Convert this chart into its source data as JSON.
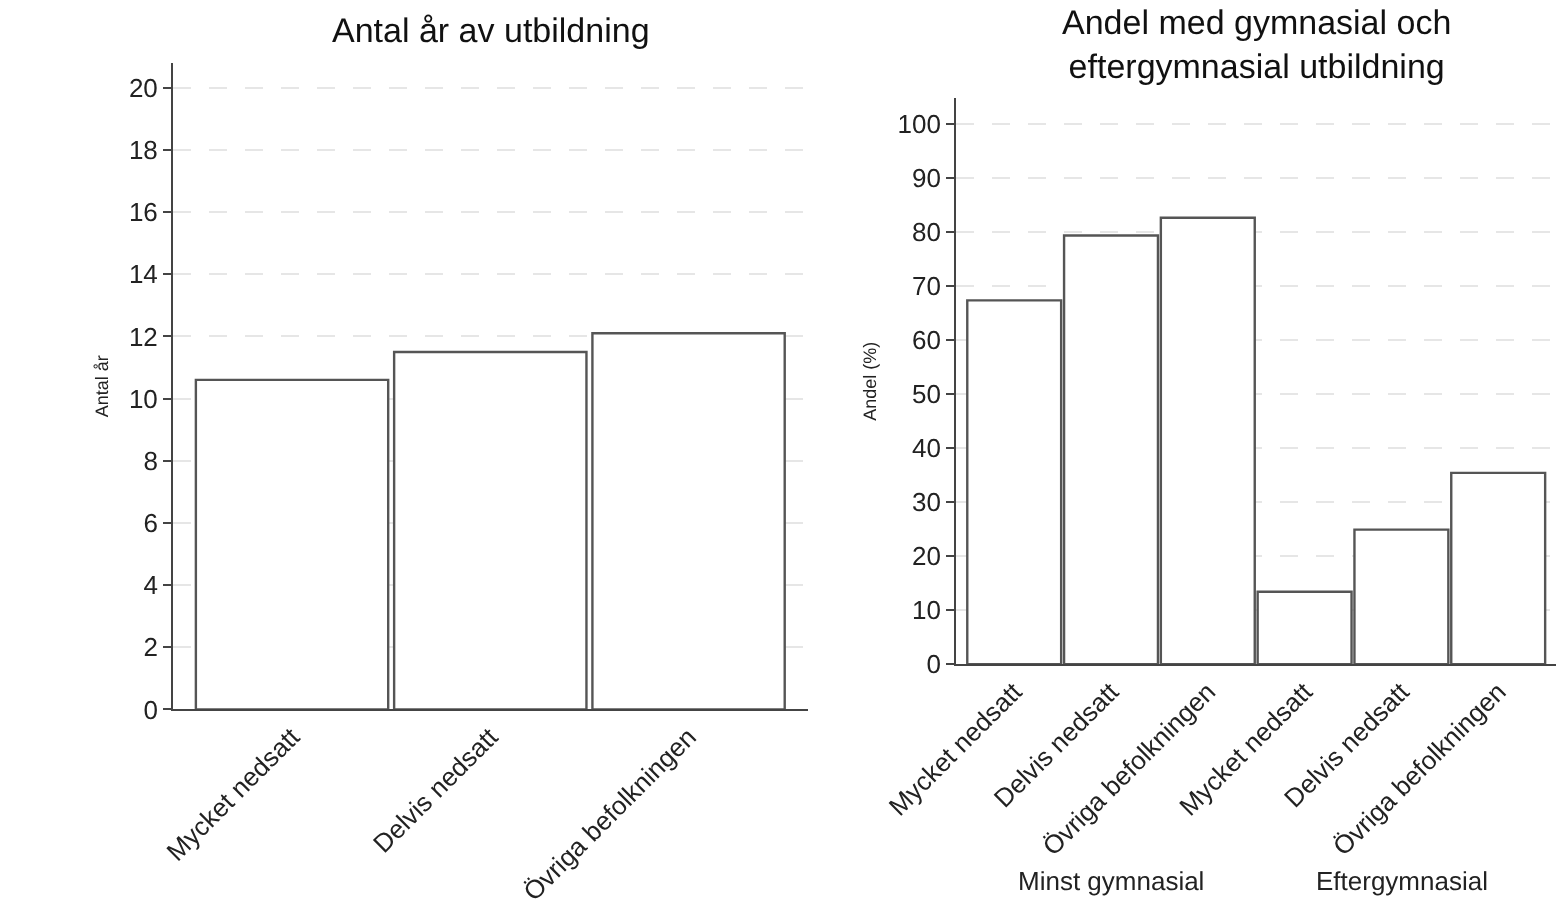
{
  "chart_data": [
    {
      "type": "bar",
      "title": "Antal år av utbildning",
      "ylabel": "Antal år",
      "categories": [
        "Mycket nedsatt",
        "Delvis nedsatt",
        "Övriga befolkningen"
      ],
      "values": [
        10.6,
        11.5,
        12.1
      ],
      "color": "#ffffff",
      "ylim": [
        0,
        20.8
      ],
      "yticks": [
        0,
        2,
        4,
        6,
        8,
        10,
        12,
        14,
        16,
        18,
        20
      ],
      "grid": "y"
    },
    {
      "type": "bar",
      "title": "Andel med gymnasial och\neftergymnasial utbildning",
      "ylabel": "Andel (%)",
      "categories": [
        "Mycket nedsatt",
        "Delvis nedsatt",
        "Övriga befolkningen",
        "Mycket nedsatt",
        "Delvis nedsatt",
        "Övriga befolkningen"
      ],
      "values": [
        67.3,
        79.3,
        82.6,
        13.4,
        24.9,
        35.4
      ],
      "color": "#ffffff",
      "ylim": [
        0,
        104.7
      ],
      "yticks": [
        0,
        10,
        20,
        30,
        40,
        50,
        60,
        70,
        80,
        90,
        100
      ],
      "grid": "y",
      "annotations": [
        "Minst gymnasial",
        "Eftergymnasial"
      ]
    }
  ]
}
